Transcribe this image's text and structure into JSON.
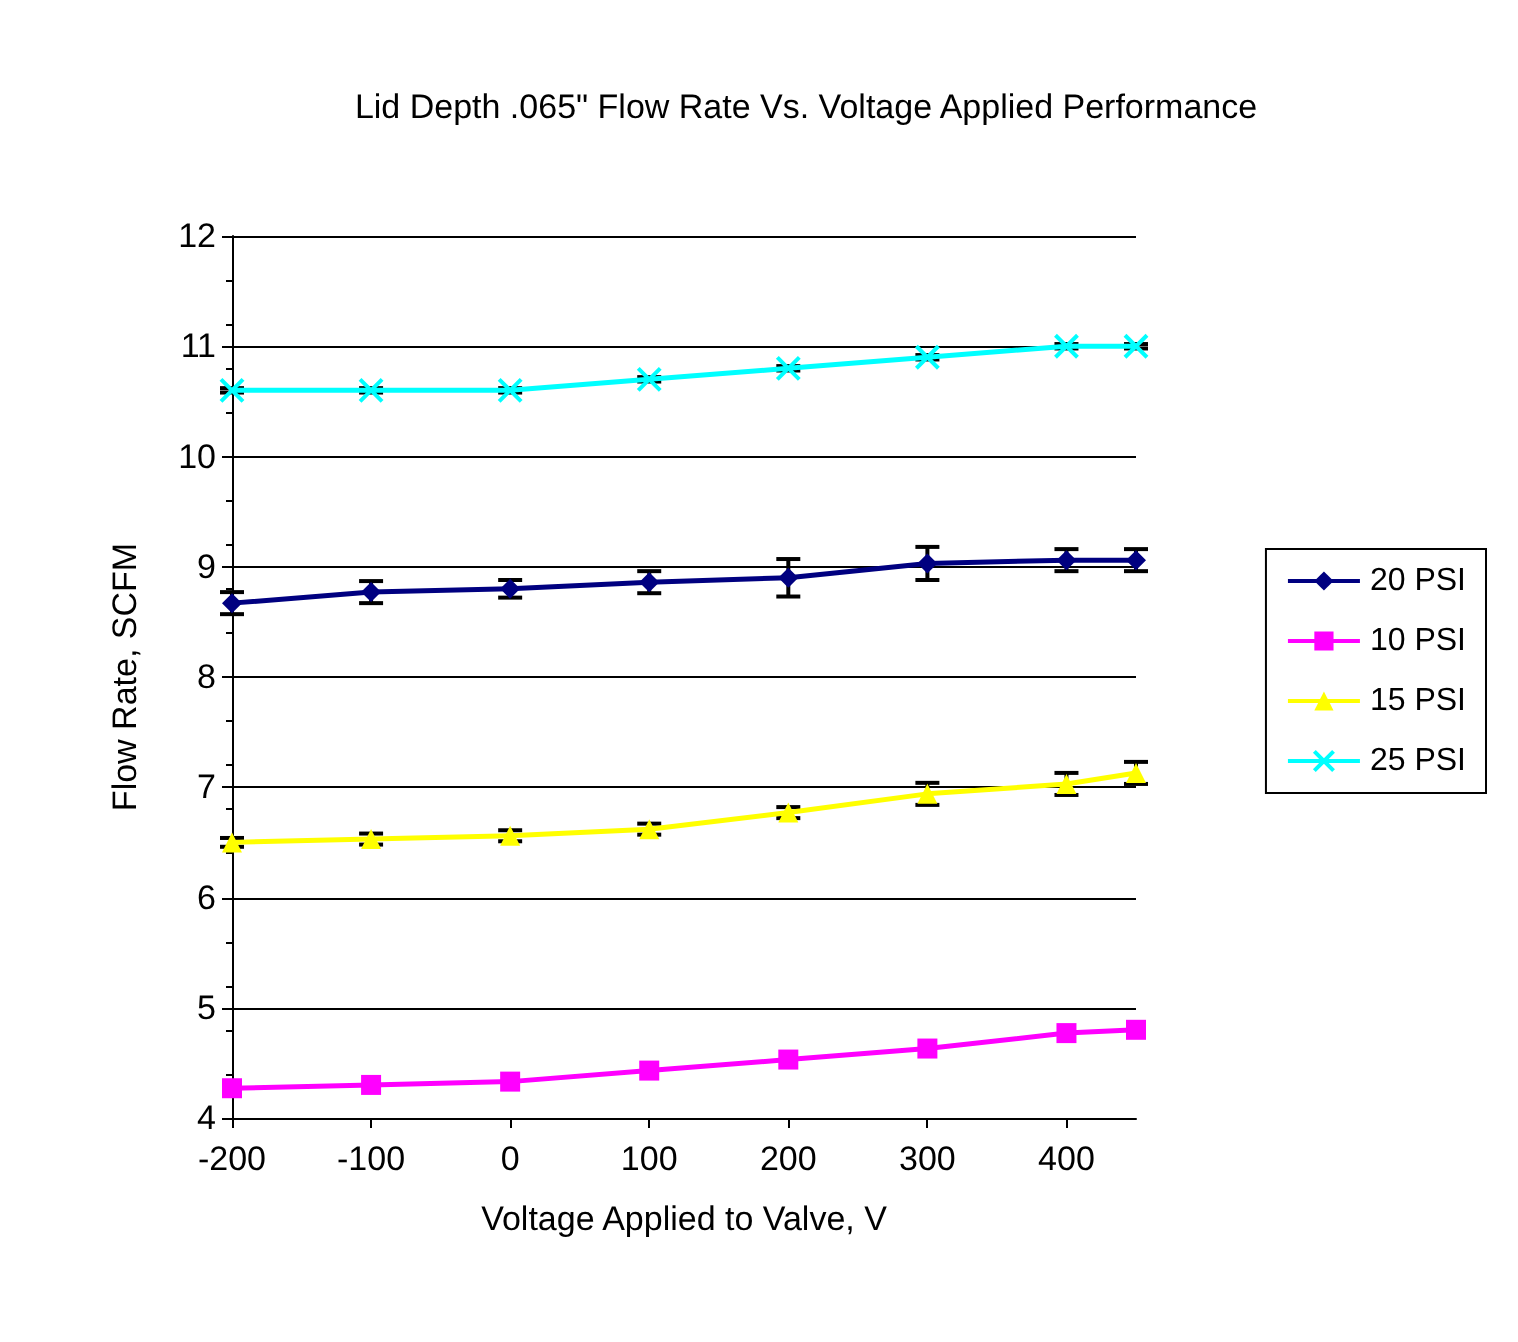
{
  "chart_data": {
    "type": "line",
    "title": "Lid Depth .065\" Flow Rate Vs. Voltage Applied Performance",
    "xlabel": "Voltage Applied to Valve, V",
    "ylabel": "Flow Rate, SCFM",
    "x": [
      -200,
      -100,
      0,
      100,
      200,
      300,
      400,
      450
    ],
    "xlim": [
      -200,
      450
    ],
    "xticks": [
      -200,
      -100,
      0,
      100,
      200,
      300,
      400
    ],
    "ylim": [
      4,
      12
    ],
    "yticks": [
      4,
      5,
      6,
      7,
      8,
      9,
      10,
      11,
      12
    ],
    "grid": "y",
    "legend": "right",
    "series": [
      {
        "name": "20 PSI",
        "color": "#000080",
        "marker": "diamond",
        "values": [
          8.67,
          8.77,
          8.8,
          8.86,
          8.9,
          9.03,
          9.06,
          9.06
        ],
        "errors": [
          0.1,
          0.1,
          0.08,
          0.1,
          0.17,
          0.15,
          0.1,
          0.1
        ]
      },
      {
        "name": "10 PSI",
        "color": "#ff00ff",
        "marker": "square",
        "values": [
          4.27,
          4.3,
          4.33,
          4.43,
          4.53,
          4.63,
          4.77,
          4.8
        ]
      },
      {
        "name": "15 PSI",
        "color": "#ffff00",
        "marker": "triangle",
        "values": [
          6.5,
          6.53,
          6.56,
          6.62,
          6.77,
          6.94,
          7.03,
          7.13
        ],
        "errors": [
          0.04,
          0.05,
          0.05,
          0.05,
          0.05,
          0.1,
          0.1,
          0.1
        ]
      },
      {
        "name": "25 PSI",
        "color": "#00ffff",
        "marker": "cross",
        "values": [
          10.6,
          10.6,
          10.6,
          10.7,
          10.8,
          10.9,
          11,
          11
        ],
        "errors": [
          0.02,
          0.02,
          0.02,
          0.02,
          0.02,
          0.02,
          0.02,
          0.02
        ]
      }
    ]
  }
}
